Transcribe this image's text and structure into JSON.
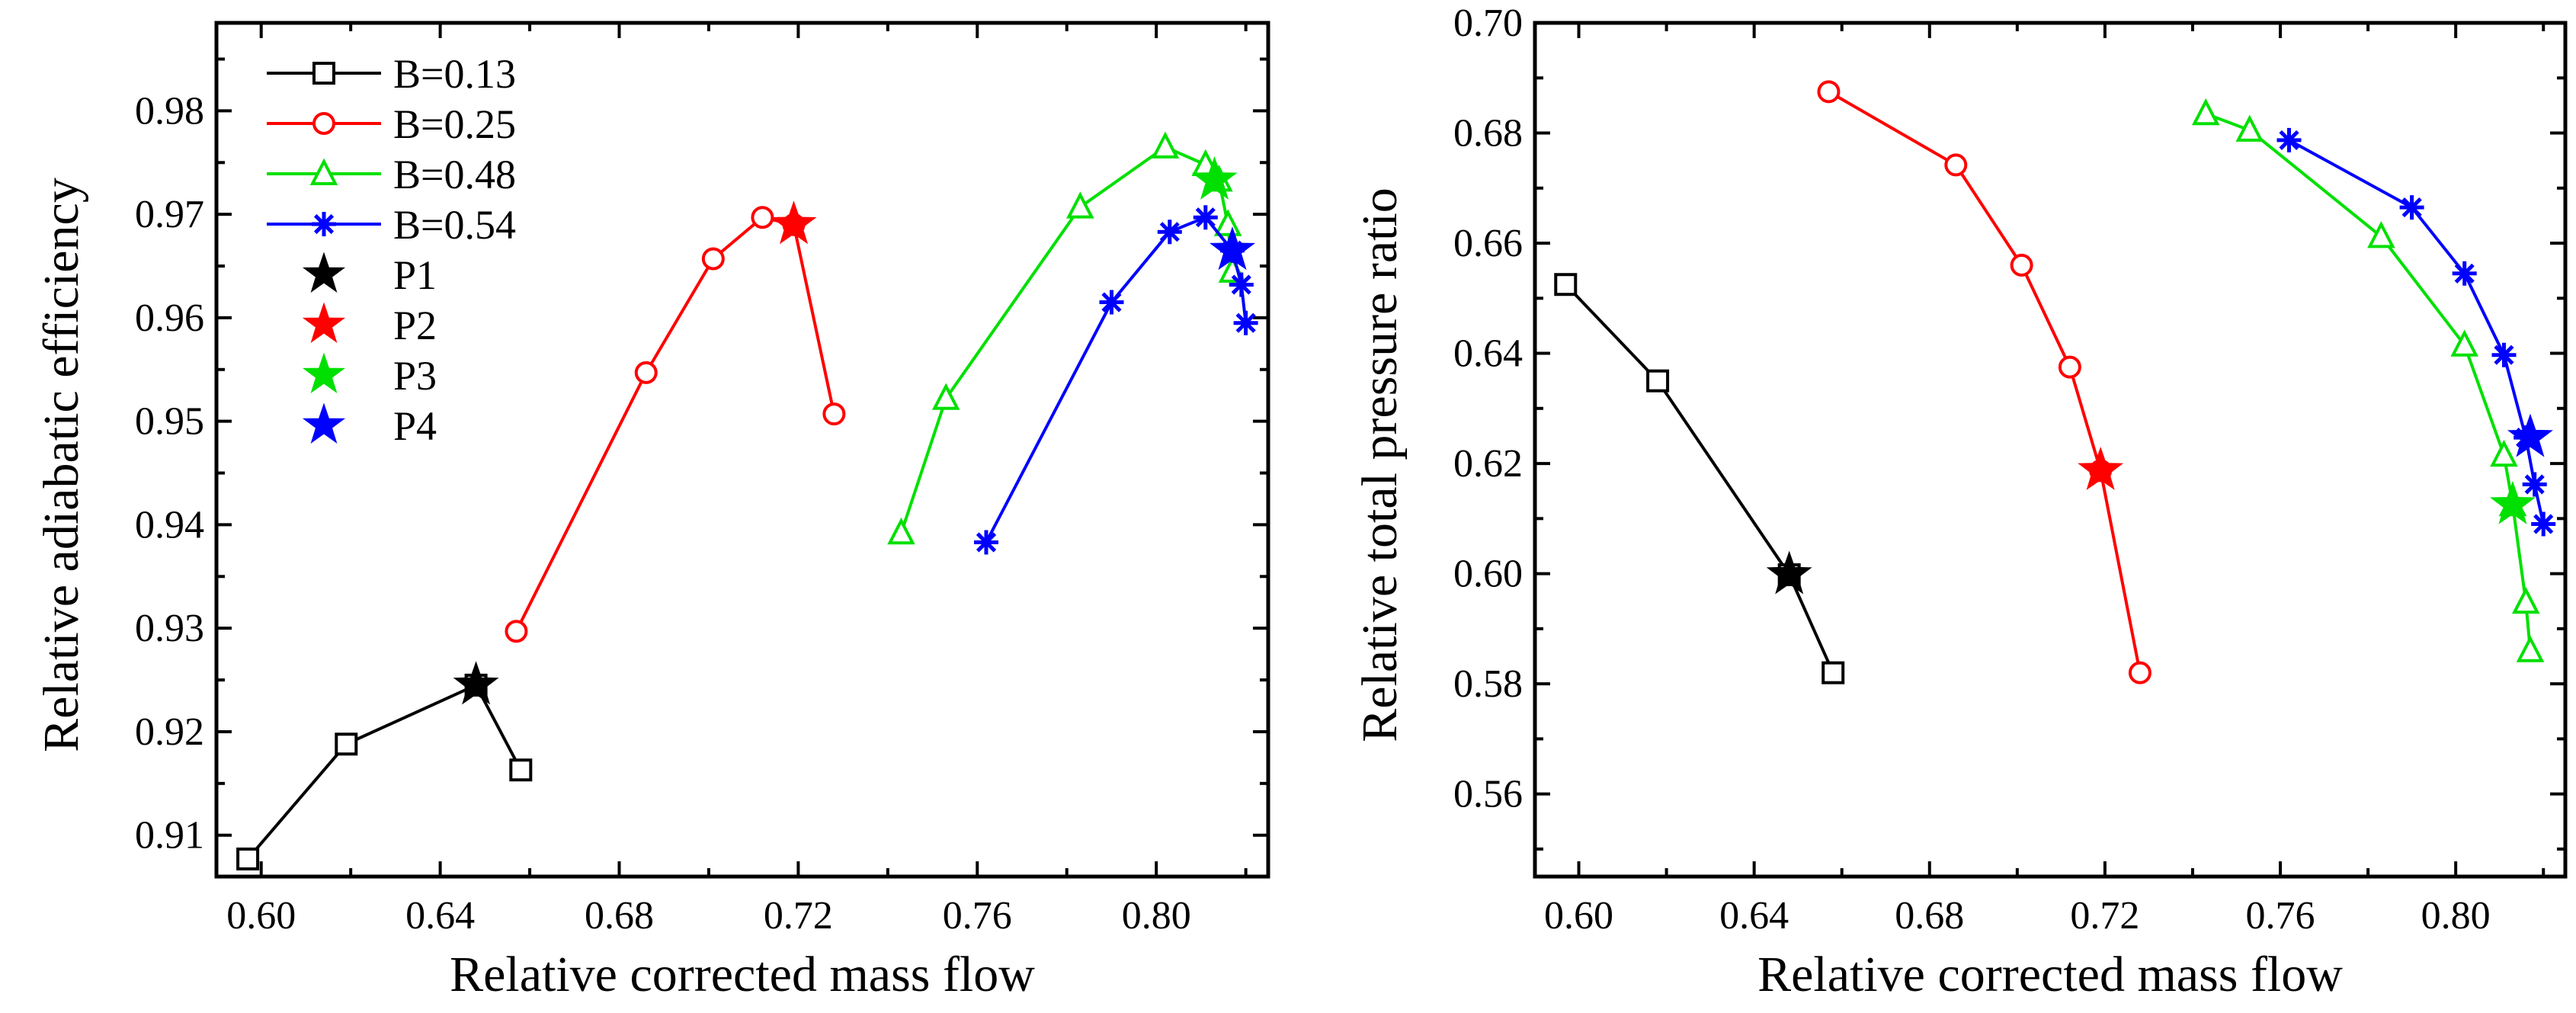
{
  "chart_data": [
    {
      "type": "line",
      "title": "",
      "xlabel": "Relative corrected mass flow",
      "ylabel": "Relative adiabatic efficiency",
      "xlim": [
        0.59,
        0.825
      ],
      "ylim": [
        0.906,
        0.9885
      ],
      "xticks": [
        "0.60",
        "0.64",
        "0.68",
        "0.72",
        "0.76",
        "0.80"
      ],
      "yticks": [
        "0.91",
        "0.92",
        "0.93",
        "0.94",
        "0.95",
        "0.96",
        "0.97",
        "0.98"
      ],
      "legend_position": "top-left",
      "series": [
        {
          "name": "B=0.13",
          "color": "#000000",
          "marker": "square",
          "x": [
            0.597,
            0.619,
            0.648,
            0.658
          ],
          "y": [
            0.9077,
            0.9188,
            0.9245,
            0.9163
          ]
        },
        {
          "name": "B=0.25",
          "color": "#ff0000",
          "marker": "circle",
          "x": [
            0.657,
            0.686,
            0.701,
            0.712,
            0.719,
            0.728
          ],
          "y": [
            0.9297,
            0.9547,
            0.9657,
            0.9697,
            0.969,
            0.9507
          ]
        },
        {
          "name": "B=0.48",
          "color": "#00e000",
          "marker": "triangle",
          "x": [
            0.743,
            0.753,
            0.783,
            0.802,
            0.811,
            0.814,
            0.816,
            0.817
          ],
          "y": [
            0.9392,
            0.9522,
            0.9707,
            0.9765,
            0.9748,
            0.9733,
            0.969,
            0.9645
          ]
        },
        {
          "name": "B=0.54",
          "color": "#0000ff",
          "marker": "asterisk",
          "x": [
            0.762,
            0.79,
            0.803,
            0.811,
            0.817,
            0.819,
            0.82
          ],
          "y": [
            0.9383,
            0.9615,
            0.9683,
            0.9697,
            0.9665,
            0.9632,
            0.9595
          ]
        }
      ],
      "points": [
        {
          "name": "P1",
          "color": "#000000",
          "x": 0.648,
          "y": 0.9245
        },
        {
          "name": "P2",
          "color": "#ff0000",
          "x": 0.719,
          "y": 0.969
        },
        {
          "name": "P3",
          "color": "#00e000",
          "x": 0.813,
          "y": 0.9733
        },
        {
          "name": "P4",
          "color": "#0000ff",
          "x": 0.817,
          "y": 0.9665
        }
      ]
    },
    {
      "type": "line",
      "title": "",
      "xlabel": "Relative corrected mass flow",
      "ylabel": "Relative total pressure ratio",
      "xlim": [
        0.59,
        0.825
      ],
      "ylim": [
        0.545,
        0.7
      ],
      "xticks": [
        "0.60",
        "0.64",
        "0.68",
        "0.72",
        "0.76",
        "0.80"
      ],
      "yticks": [
        "0.56",
        "0.58",
        "0.60",
        "0.62",
        "0.64",
        "0.66",
        "0.68",
        "0.70"
      ],
      "series": [
        {
          "name": "B=0.13",
          "color": "#000000",
          "marker": "square",
          "x": [
            0.597,
            0.618,
            0.648,
            0.658
          ],
          "y": [
            0.6525,
            0.635,
            0.5998,
            0.582
          ]
        },
        {
          "name": "B=0.25",
          "color": "#ff0000",
          "marker": "circle",
          "x": [
            0.657,
            0.686,
            0.701,
            0.712,
            0.719,
            0.728
          ],
          "y": [
            0.6875,
            0.6742,
            0.656,
            0.6375,
            0.6187,
            0.582
          ]
        },
        {
          "name": "B=0.48",
          "color": "#00e000",
          "marker": "triangle",
          "x": [
            0.743,
            0.753,
            0.783,
            0.802,
            0.811,
            0.813,
            0.816,
            0.817
          ],
          "y": [
            0.6835,
            0.6805,
            0.6612,
            0.6415,
            0.6215,
            0.6125,
            0.5948,
            0.586
          ]
        },
        {
          "name": "B=0.54",
          "color": "#0000ff",
          "marker": "asterisk",
          "x": [
            0.762,
            0.79,
            0.802,
            0.811,
            0.816,
            0.818,
            0.82
          ],
          "y": [
            0.6787,
            0.6665,
            0.6545,
            0.6397,
            0.6247,
            0.6162,
            0.609
          ]
        }
      ],
      "points": [
        {
          "name": "P1",
          "color": "#000000",
          "x": 0.648,
          "y": 0.5998
        },
        {
          "name": "P2",
          "color": "#ff0000",
          "x": 0.719,
          "y": 0.6187
        },
        {
          "name": "P3",
          "color": "#00e000",
          "x": 0.813,
          "y": 0.6125
        },
        {
          "name": "P4",
          "color": "#0000ff",
          "x": 0.817,
          "y": 0.6247
        }
      ]
    }
  ]
}
